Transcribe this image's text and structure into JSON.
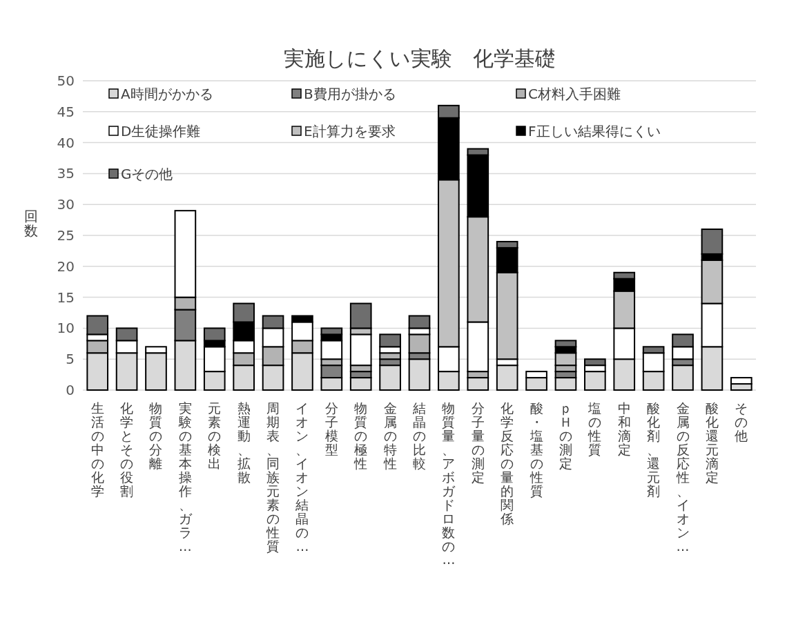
{
  "chart_data": {
    "type": "bar",
    "stacked": true,
    "title": "実施しにくい実験　化学基礎",
    "ylabel": "回数",
    "categories": [
      "生活の中の化学",
      "化学とその役割",
      "物質の分離",
      "実験の基本操作、ガラ…",
      "元素の検出",
      "熱運動、拡散",
      "周期表、同族元素の性質",
      "イオン、イオン結晶の…",
      "分子模型",
      "物質の極性",
      "金属の特性",
      "結晶の比較",
      "物質量、アボガドロ数の…",
      "分子量の測定",
      "化学反応の量的関係",
      "酸・塩基の性質",
      "ｐＨの測定",
      "塩の性質",
      "中和滴定",
      "酸化剤、還元剤",
      "金属の反応性、イオン…",
      "酸化還元滴定",
      "その他"
    ],
    "series": [
      {
        "name": "A時間がかかる",
        "color": "#d9d9d9",
        "values": [
          6,
          6,
          6,
          8,
          3,
          4,
          4,
          6,
          2,
          2,
          4,
          5,
          3,
          2,
          4,
          2,
          2,
          3,
          5,
          3,
          4,
          7,
          1
        ]
      },
      {
        "name": "B費用が掛かる",
        "color": "#808080",
        "values": [
          0,
          0,
          0,
          5,
          0,
          0,
          0,
          0,
          2,
          1,
          1,
          1,
          0,
          0,
          0,
          0,
          1,
          0,
          0,
          0,
          1,
          0,
          0
        ]
      },
      {
        "name": "C材料入手困難",
        "color": "#b3b3b3",
        "values": [
          2,
          0,
          0,
          2,
          0,
          2,
          3,
          2,
          1,
          1,
          1,
          3,
          0,
          1,
          0,
          0,
          1,
          0,
          0,
          0,
          0,
          0,
          0
        ]
      },
      {
        "name": "D生徒操作難",
        "color": "#ffffff",
        "values": [
          1,
          2,
          1,
          14,
          4,
          2,
          3,
          3,
          3,
          5,
          1,
          1,
          4,
          8,
          1,
          1,
          0,
          1,
          5,
          3,
          2,
          7,
          1
        ]
      },
      {
        "name": "E計算力を要求",
        "color": "#c0c0c0",
        "values": [
          0,
          0,
          0,
          0,
          0,
          0,
          0,
          0,
          0,
          1,
          0,
          0,
          27,
          17,
          14,
          0,
          2,
          0,
          6,
          0,
          0,
          7,
          0
        ]
      },
      {
        "name": "F正しい結果得にくい",
        "color": "#000000",
        "values": [
          0,
          0,
          0,
          0,
          1,
          3,
          0,
          1,
          1,
          0,
          0,
          0,
          10,
          10,
          4,
          0,
          1,
          0,
          2,
          0,
          0,
          1,
          0
        ]
      },
      {
        "name": "Gその他",
        "color": "#6e6e6e",
        "values": [
          3,
          2,
          0,
          0,
          2,
          3,
          2,
          0,
          1,
          4,
          2,
          2,
          2,
          1,
          1,
          0,
          1,
          1,
          1,
          1,
          2,
          4,
          0
        ]
      }
    ],
    "ylim": [
      0,
      50
    ],
    "yticks": [
      0,
      5,
      10,
      15,
      20,
      25,
      30,
      35,
      40,
      45,
      50
    ],
    "grid": "y",
    "legend": "top left"
  }
}
